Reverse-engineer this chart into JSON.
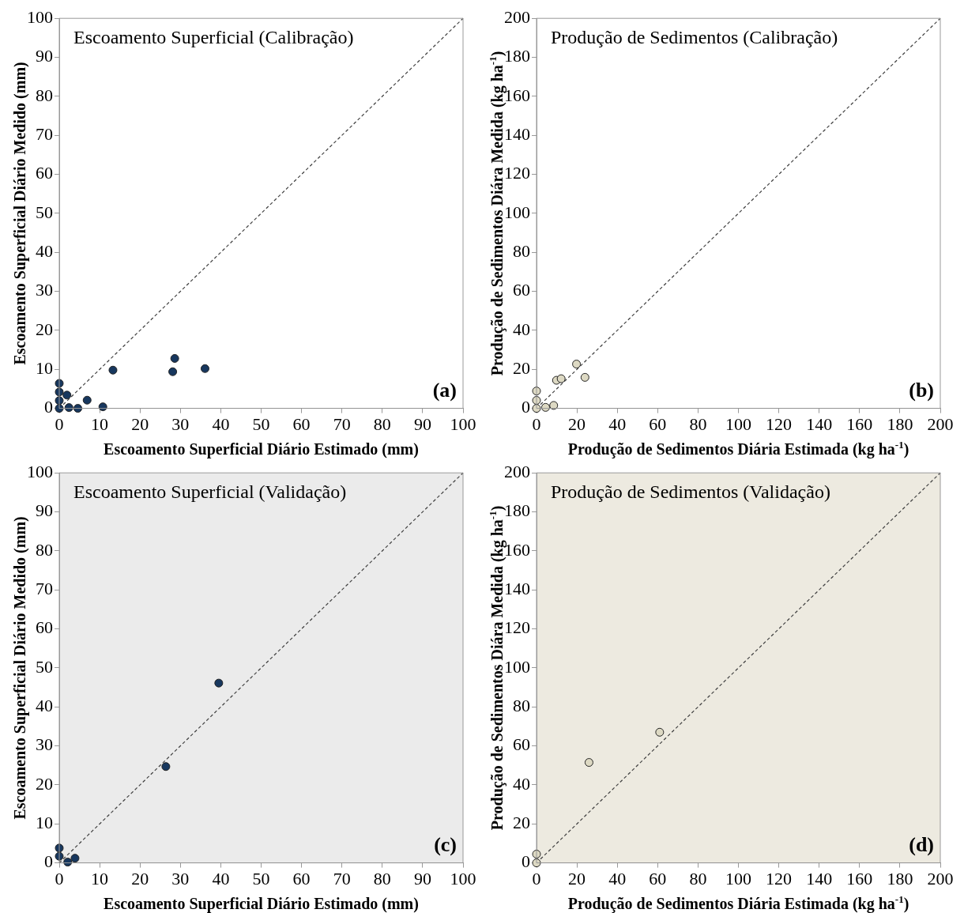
{
  "chart_data": [
    {
      "type": "scatter",
      "title": "Escoamento Superficial (Calibração)",
      "xlabel": "Escoamento Superficial Diário Estimado (mm)",
      "ylabel": "Escoamento Superficial Diário Medido (mm)",
      "annotations": [
        "(a)"
      ],
      "xlim": [
        0,
        100
      ],
      "ylim": [
        0,
        100
      ],
      "xticks": [
        0,
        10,
        20,
        30,
        40,
        50,
        60,
        70,
        80,
        90,
        100
      ],
      "yticks": [
        0,
        10,
        20,
        30,
        40,
        50,
        60,
        70,
        80,
        90,
        100
      ],
      "grid": false,
      "legend": false,
      "marker": "circle",
      "series": [
        {
          "color": "#17375e",
          "x": [
            0,
            0,
            0,
            0,
            1.9,
            2.4,
            4.6,
            6.9,
            10.8,
            13.3,
            28.6,
            28.1,
            36.1
          ],
          "values": [
            6.4,
            4.2,
            2.0,
            0,
            3.4,
            0.2,
            0,
            2.1,
            0.4,
            9.8,
            12.8,
            9.4,
            10.2
          ]
        },
        {
          "type": "line",
          "color": "#404040",
          "line_style": "dashed",
          "marker": "none",
          "x": [
            0,
            100
          ],
          "values": [
            0,
            100
          ]
        }
      ]
    },
    {
      "type": "scatter",
      "title": "Produção de Sedimentos (Calibração)",
      "xlabel": "Produção de Sedimentos Diária Estimada (kg ha$^{-1}$)",
      "ylabel": "Produção de Sedimentos Diára Medida (kg ha$^{-1}$)",
      "annotations": [
        "(b)"
      ],
      "xlim": [
        0,
        200
      ],
      "ylim": [
        0,
        200
      ],
      "xticks": [
        0,
        20,
        40,
        60,
        80,
        100,
        120,
        140,
        160,
        180,
        200
      ],
      "yticks": [
        0,
        20,
        40,
        60,
        80,
        100,
        120,
        140,
        160,
        180,
        200
      ],
      "grid": false,
      "legend": false,
      "marker": "circle",
      "series": [
        {
          "color": "#ddd9c3",
          "x": [
            0,
            0,
            0,
            4.5,
            8.5,
            9.9,
            12.2,
            19.8,
            24.0
          ],
          "values": [
            8.9,
            4.1,
            0,
            0.5,
            1.5,
            14.4,
            15.2,
            22.7,
            15.9
          ]
        },
        {
          "type": "line",
          "color": "#404040",
          "line_style": "dashed",
          "marker": "none",
          "x": [
            0,
            200
          ],
          "values": [
            0,
            200
          ]
        }
      ]
    },
    {
      "type": "scatter",
      "title": "Escoamento Superficial (Validação)",
      "xlabel": "Escoamento Superficial Diário Estimado (mm)",
      "ylabel": "Escoamento Superficial Diário Medido (mm)",
      "annotations": [
        "(c)"
      ],
      "xlim": [
        0,
        100
      ],
      "ylim": [
        0,
        100
      ],
      "xticks": [
        0,
        10,
        20,
        30,
        40,
        50,
        60,
        70,
        80,
        90,
        100
      ],
      "yticks": [
        0,
        10,
        20,
        30,
        40,
        50,
        60,
        70,
        80,
        90,
        100
      ],
      "grid": false,
      "legend": false,
      "marker": "circle",
      "series": [
        {
          "color": "#17375e",
          "x": [
            0,
            0,
            2.1,
            3.9,
            26.4,
            39.5
          ],
          "values": [
            3.8,
            1.7,
            0.2,
            1.2,
            24.7,
            46.1
          ]
        },
        {
          "type": "line",
          "color": "#404040",
          "line_style": "dashed",
          "marker": "none",
          "x": [
            0,
            100
          ],
          "values": [
            0,
            100
          ]
        }
      ]
    },
    {
      "type": "scatter",
      "title": "Produção de Sedimentos (Validação)",
      "xlabel": "Produção de Sedimentos Diária Estimada (kg ha$^{-1}$)",
      "ylabel": "Produção de Sedimentos Diára Medida (kg ha$^{-1}$)",
      "annotations": [
        "(d)"
      ],
      "xlim": [
        0,
        200
      ],
      "ylim": [
        0,
        200
      ],
      "xticks": [
        0,
        20,
        40,
        60,
        80,
        100,
        120,
        140,
        160,
        180,
        200
      ],
      "yticks": [
        0,
        20,
        40,
        60,
        80,
        100,
        120,
        140,
        160,
        180,
        200
      ],
      "grid": false,
      "legend": false,
      "marker": "circle",
      "series": [
        {
          "color": "#ddd9c3",
          "x": [
            0,
            0,
            26,
            61
          ],
          "values": [
            4.5,
            0,
            51.5,
            67
          ]
        },
        {
          "type": "line",
          "color": "#404040",
          "line_style": "dashed",
          "marker": "none",
          "x": [
            0,
            200
          ],
          "values": [
            0,
            200
          ]
        }
      ]
    }
  ]
}
